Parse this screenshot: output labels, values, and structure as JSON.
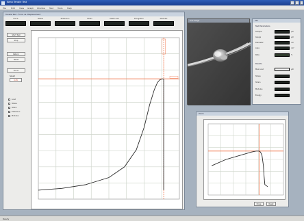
{
  "app": {
    "title": "Nano Tensile Test",
    "menu": [
      "File",
      "Edit",
      "View",
      "Graph",
      "Window",
      "Test",
      "Tools",
      "Help"
    ]
  },
  "main_window": {
    "title": "Tensile Test - Force vs. Displacement",
    "readouts": [
      {
        "label": "Force"
      },
      {
        "label": "Stress"
      },
      {
        "label": "Extension"
      },
      {
        "label": "Strain"
      },
      {
        "label": "Peak Load"
      },
      {
        "label": "Elongation"
      },
      {
        "label": "Modulus"
      }
    ],
    "left_panel": {
      "buttons": [
        "Start Test",
        "Stop",
        "Return",
        "Reset",
        "Zoom"
      ],
      "speed_label": "Speed",
      "speed_value": "0.05",
      "checks": [
        "Load",
        "Stress",
        "Strain",
        "Extension",
        "Modulus"
      ]
    }
  },
  "chart_data": {
    "type": "line",
    "title": "",
    "xlabel": "",
    "ylabel": "",
    "x": [
      0,
      30,
      60,
      90,
      110,
      125,
      135,
      142,
      148,
      152,
      155,
      158,
      159.5,
      160,
      160,
      160
    ],
    "y": [
      0,
      2,
      6,
      14,
      26,
      45,
      70,
      95,
      112,
      120,
      123,
      124,
      124,
      124,
      60,
      0
    ],
    "xlim": [
      0,
      180
    ],
    "ylim": [
      -10,
      170
    ],
    "grid": true,
    "markers": {
      "horizontal_line_y": 124,
      "vertical_line_x": 160,
      "color": "#f07a52"
    },
    "series_color": "#2a2a2a"
  },
  "camera_window": {
    "title": "Live Image"
  },
  "info_window": {
    "title": "Info",
    "section1": "Test Parameters",
    "section2": "Results",
    "rows1": [
      {
        "label": "Sample",
        "unit": "µm"
      },
      {
        "label": "Gauge",
        "unit": "µm"
      },
      {
        "label": "Diameter",
        "unit": "nm"
      },
      {
        "label": "Area",
        "unit": "nm²"
      },
      {
        "label": "Rate",
        "unit": "%"
      }
    ],
    "rows2": [
      {
        "label": "Max Load",
        "unit": "µN"
      },
      {
        "label": "Stress",
        "unit": ""
      },
      {
        "label": "Strain",
        "unit": ""
      },
      {
        "label": "Modulus",
        "unit": ""
      },
      {
        "label": "Energy",
        "unit": ""
      }
    ]
  },
  "zoom_window": {
    "title": "Zoom",
    "buttons": [
      "Close",
      "Reset"
    ],
    "chart": {
      "x": [
        0,
        20,
        40,
        55,
        62,
        66,
        68,
        70,
        72,
        73,
        74,
        78
      ],
      "y": [
        10,
        13,
        15,
        16.5,
        17,
        17,
        16.5,
        15,
        10,
        5,
        1,
        0
      ],
      "xlim": [
        -5,
        100
      ],
      "ylim": [
        -4,
        30
      ],
      "hline_y": 17,
      "vline_x": 66
    }
  },
  "status": {
    "text": "Ready"
  },
  "colors": {
    "accent": "#f07a52",
    "title_bar": "#1b3f8f",
    "readout_bg": "#1f2420"
  }
}
